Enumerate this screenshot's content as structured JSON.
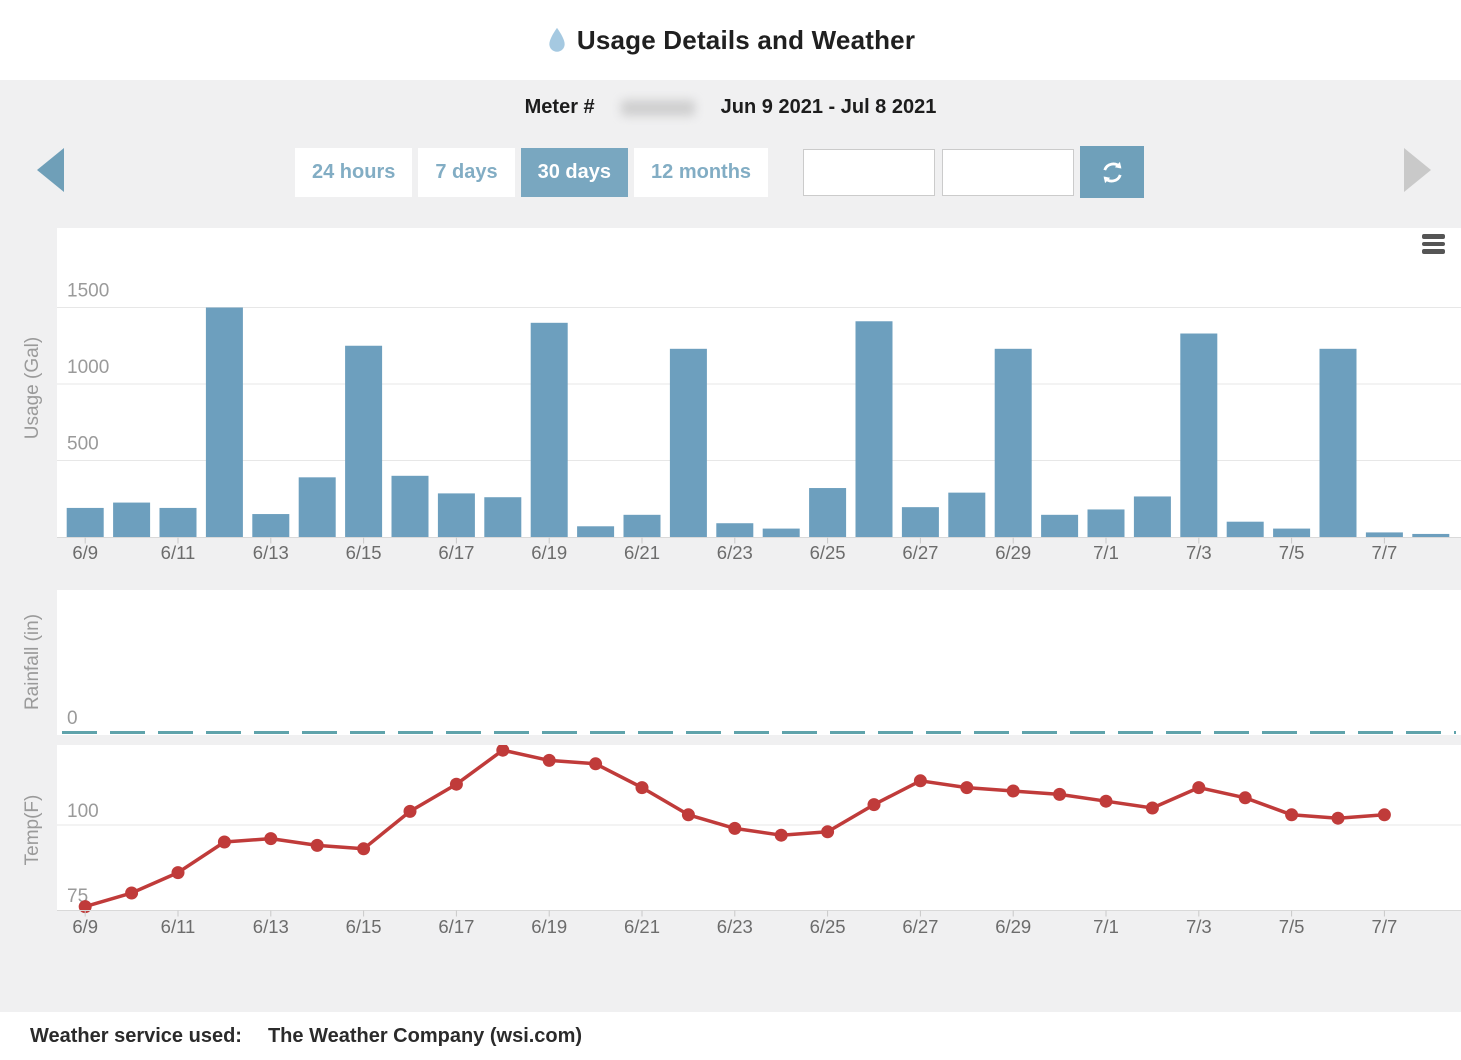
{
  "header": {
    "title": "Usage Details and Weather"
  },
  "meter": {
    "label": "Meter #",
    "date_range": "Jun 9 2021 - Jul 8 2021"
  },
  "controls": {
    "range_buttons": [
      {
        "label": "24 hours",
        "active": false
      },
      {
        "label": "7 days",
        "active": false
      },
      {
        "label": "30 days",
        "active": true
      },
      {
        "label": "12 months",
        "active": false
      }
    ],
    "date_inputs": [
      {
        "value": "",
        "placeholder": ""
      },
      {
        "value": "",
        "placeholder": ""
      }
    ]
  },
  "colors": {
    "accent": "#79a7c0",
    "accent_text": "#82adc4",
    "bar": "#6d9fbe",
    "rainfall_line": "#5fa3ab",
    "temp_line": "#c03b3a",
    "droplet": "#a5c9e1",
    "band_bg": "#f0f0f1",
    "grid": "#e7e7e7",
    "axis_line": "#d9d9d9",
    "axis_text": "#9a9a9a"
  },
  "chart_data": [
    {
      "type": "bar",
      "title": "Daily water usage",
      "ylabel": "Usage (Gal)",
      "xlabel": "",
      "categories": [
        "6/9",
        "6/10",
        "6/11",
        "6/12",
        "6/13",
        "6/14",
        "6/15",
        "6/16",
        "6/17",
        "6/18",
        "6/19",
        "6/20",
        "6/21",
        "6/22",
        "6/23",
        "6/24",
        "6/25",
        "6/26",
        "6/27",
        "6/28",
        "6/29",
        "6/30",
        "7/1",
        "7/2",
        "7/3",
        "7/4",
        "7/5",
        "7/6",
        "7/7",
        "7/8"
      ],
      "values": [
        190,
        225,
        190,
        1500,
        150,
        390,
        1250,
        400,
        285,
        260,
        1400,
        70,
        145,
        1230,
        90,
        55,
        320,
        1410,
        195,
        290,
        1230,
        145,
        180,
        265,
        1330,
        100,
        55,
        1230,
        30,
        20
      ],
      "yticks": [
        0,
        500,
        1000,
        1500
      ],
      "ylim": [
        0,
        2000
      ],
      "xtick_every": 2,
      "grid": true,
      "legend_position": "none"
    },
    {
      "type": "line",
      "title": "Daily rainfall",
      "ylabel": "Rainfall (in)",
      "xlabel": "",
      "style": "dashed",
      "categories": [
        "6/9",
        "6/10",
        "6/11",
        "6/12",
        "6/13",
        "6/14",
        "6/15",
        "6/16",
        "6/17",
        "6/18",
        "6/19",
        "6/20",
        "6/21",
        "6/22",
        "6/23",
        "6/24",
        "6/25",
        "6/26",
        "6/27",
        "6/28",
        "6/29",
        "6/30",
        "7/1",
        "7/2",
        "7/3",
        "7/4",
        "7/5",
        "7/6",
        "7/7",
        "7/8"
      ],
      "values": [
        0,
        0,
        0,
        0,
        0,
        0,
        0,
        0,
        0,
        0,
        0,
        0,
        0,
        0,
        0,
        0,
        0,
        0,
        0,
        0,
        0,
        0,
        0,
        0,
        0,
        0,
        0,
        0,
        0,
        0
      ],
      "yticks": [
        0
      ],
      "ylim": [
        0,
        1
      ],
      "grid": false,
      "legend_position": "none"
    },
    {
      "type": "line",
      "title": "Daily temperature",
      "ylabel": "Temp(F)",
      "xlabel": "",
      "markers": true,
      "categories": [
        "6/9",
        "6/10",
        "6/11",
        "6/12",
        "6/13",
        "6/14",
        "6/15",
        "6/16",
        "6/17",
        "6/18",
        "6/19",
        "6/20",
        "6/21",
        "6/22",
        "6/23",
        "6/24",
        "6/25",
        "6/26",
        "6/27",
        "6/28",
        "6/29",
        "6/30",
        "7/1",
        "7/2",
        "7/3",
        "7/4",
        "7/5",
        "7/6",
        "7/7",
        "7/8"
      ],
      "values": [
        76,
        80,
        86,
        95,
        96,
        94,
        93,
        104,
        112,
        122,
        119,
        118,
        111,
        103,
        99,
        97,
        98,
        106,
        113,
        111,
        110,
        109,
        107,
        105,
        111,
        108,
        103,
        102,
        103,
        null
      ],
      "yticks": [
        75,
        100
      ],
      "ylim": [
        73,
        125
      ],
      "xtick_every": 2,
      "grid": true,
      "legend_position": "none"
    }
  ],
  "footer": {
    "label": "Weather service used:",
    "value": "The Weather Company (wsi.com)"
  }
}
